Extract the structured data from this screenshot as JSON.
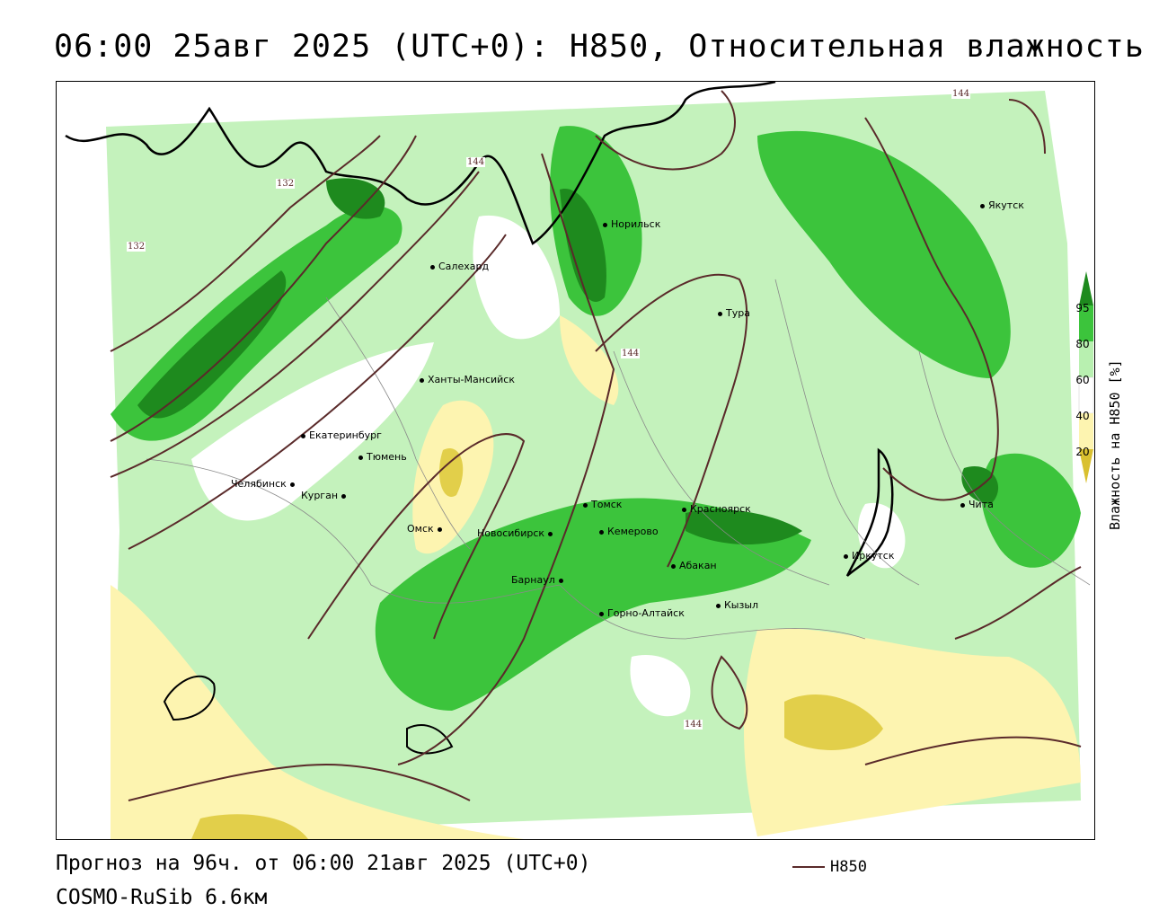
{
  "title": "06:00 25авг 2025 (UTC+0): H850, Относительная влажность",
  "footer": {
    "forecast": "Прогноз на 96ч. от 06:00 21авг 2025 (UTC+0)",
    "model": "COSMO-RuSib 6.6км",
    "contour_legend": "H850"
  },
  "colorbar": {
    "label": "Влажность на H850 [%]",
    "ticks": [
      "95",
      "80",
      "60",
      "40",
      "20"
    ],
    "colors": {
      "c95": "#1e8a1e",
      "c80": "#3cc43c",
      "c60": "#b8f0b0",
      "c40": "#ffffff",
      "c20": "#fdf4b0",
      "c_low": "#d9c030"
    }
  },
  "contour_labels": [
    "132",
    "132",
    "144",
    "144",
    "144",
    "144"
  ],
  "cities": [
    {
      "name": "Якутск"
    },
    {
      "name": "Норильск"
    },
    {
      "name": "Салехард"
    },
    {
      "name": "Тура"
    },
    {
      "name": "Ханты-Мансийск"
    },
    {
      "name": "Екатеринбург"
    },
    {
      "name": "Тюмень"
    },
    {
      "name": "Челябинск"
    },
    {
      "name": "Курган"
    },
    {
      "name": "Томск"
    },
    {
      "name": "Красноярск"
    },
    {
      "name": "Чита"
    },
    {
      "name": "Омск"
    },
    {
      "name": "Новосибирск"
    },
    {
      "name": "Кемерово"
    },
    {
      "name": "Абакан"
    },
    {
      "name": "Иркутск"
    },
    {
      "name": "Барнаул"
    },
    {
      "name": "Горно-Алтайск"
    },
    {
      "name": "Кызыл"
    }
  ]
}
